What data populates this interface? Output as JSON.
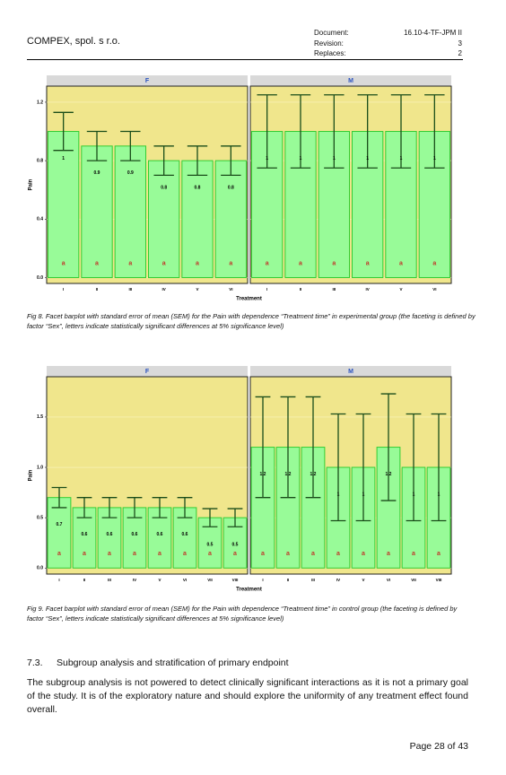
{
  "header": {
    "company": "COMPEX, spol. s r.o.",
    "fields": [
      {
        "label": "Document:",
        "value": "16.10-4-TF-JPM II"
      },
      {
        "label": "Revision:",
        "value": "3"
      },
      {
        "label": "Replaces:",
        "value": "2"
      }
    ]
  },
  "chart_data": [
    {
      "type": "bar",
      "x_label": "Treatment",
      "y_label": "Pain",
      "ylim": [
        -0.04,
        1.31
      ],
      "yticks": [
        {
          "value": 0,
          "label": "0.0"
        },
        0.4,
        0.8,
        1.2
      ],
      "grid": true,
      "bar_color": "#98fb98",
      "bar_edge": "#33cc33",
      "error_color": "#1a4d1a",
      "letter_color": "#c0392b",
      "facets": [
        {
          "name": "F",
          "categories": [
            "I",
            "II",
            "III",
            "IV",
            "V",
            "VI"
          ],
          "values": [
            1,
            0.9,
            0.9,
            0.8,
            0.8,
            0.8
          ],
          "errors": [
            0.13,
            0.1,
            0.1,
            0.1,
            0.1,
            0.1
          ],
          "letters": [
            "a",
            "a",
            "a",
            "a",
            "a",
            "a"
          ]
        },
        {
          "name": "M",
          "categories": [
            "I",
            "II",
            "III",
            "IV",
            "V",
            "VI"
          ],
          "values": [
            1,
            1,
            1,
            1,
            1,
            1
          ],
          "errors": [
            0.25,
            0.25,
            0.25,
            0.25,
            0.25,
            0.25
          ],
          "letters": [
            "a",
            "a",
            "a",
            "a",
            "a",
            "a"
          ]
        }
      ],
      "caption": "Fig 8. Facet barplot with standard error of mean (SEM) for the Pain with dependence “Treatment time” in experimental group (the faceting is defined by factor “Sex”, letters indicate statistically significant differences at 5% significance level)"
    },
    {
      "type": "bar",
      "x_label": "Treatment",
      "y_label": "Pain",
      "ylim": [
        -0.06,
        1.9
      ],
      "yticks": [
        {
          "value": 0,
          "label": "0.0"
        },
        0.5,
        {
          "value": 1,
          "label": "1.0"
        },
        1.5
      ],
      "grid": true,
      "bar_color": "#98fb98",
      "bar_edge": "#33cc33",
      "error_color": "#1a4d1a",
      "letter_color": "#c0392b",
      "facets": [
        {
          "name": "F",
          "categories": [
            "I",
            "II",
            "III",
            "IV",
            "V",
            "VI",
            "VII",
            "VIII"
          ],
          "values": [
            0.7,
            0.6,
            0.6,
            0.6,
            0.6,
            0.6,
            0.5,
            0.5
          ],
          "errors": [
            0.1,
            0.1,
            0.1,
            0.1,
            0.1,
            0.1,
            0.09,
            0.09
          ],
          "letters": [
            "a",
            "a",
            "a",
            "a",
            "a",
            "a",
            "a",
            "a"
          ]
        },
        {
          "name": "M",
          "categories": [
            "I",
            "II",
            "III",
            "IV",
            "V",
            "VI",
            "VII",
            "VIII"
          ],
          "values": [
            1.2,
            1.2,
            1.2,
            1,
            1,
            1.2,
            1,
            1
          ],
          "errors": [
            0.5,
            0.5,
            0.5,
            0.53,
            0.53,
            0.53,
            0.53,
            0.53
          ],
          "letters": [
            "a",
            "a",
            "a",
            "a",
            "a",
            "a",
            "a",
            "a"
          ]
        }
      ],
      "caption": "Fig 9. Facet barplot with standard error of mean (SEM) for the Pain with dependence “Treatment time” in control group (the faceting is defined by factor “Sex”, letters indicate statistically significant differences at 5% significance level)"
    }
  ],
  "section": {
    "number": "7.3.",
    "title": "Subgroup analysis and stratification of primary endpoint",
    "paragraph": "The subgroup analysis is not powered to detect clinically significant interactions as it is not a primary goal of the study. It is of the exploratory nature and should explore the uniformity of any treatment effect found overall."
  },
  "footer": {
    "page": "Page 28 of 43"
  }
}
